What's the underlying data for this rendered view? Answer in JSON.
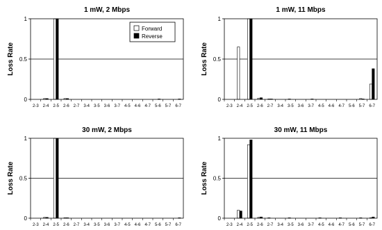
{
  "chart_data": [
    {
      "type": "bar",
      "title": "1 mW, 2 Mbps",
      "ylabel": "Loss Rate",
      "ylim": [
        0,
        1
      ],
      "yticks": [
        "0",
        "0.5",
        "1"
      ],
      "categories": [
        "2-3",
        "2-4",
        "2-5",
        "2-6",
        "2-7",
        "3-4",
        "3-5",
        "3-6",
        "3-7",
        "4-5",
        "4-6",
        "4-7",
        "5-6",
        "5-7",
        "6-7"
      ],
      "legend": "top-right",
      "series": [
        {
          "name": "Forward",
          "color": "#ffffff",
          "values": [
            0,
            0.01,
            1,
            0.01,
            0,
            0,
            0,
            0,
            0,
            0,
            0,
            0,
            0,
            0,
            0
          ]
        },
        {
          "name": "Reverse",
          "color": "#000000",
          "values": [
            0,
            0.01,
            1,
            0.01,
            0,
            0,
            0,
            0,
            0,
            0,
            0,
            0,
            0.005,
            0,
            0.005
          ]
        }
      ]
    },
    {
      "type": "bar",
      "title": "1 mW, 11 Mbps",
      "ylabel": "Loss Rate",
      "ylim": [
        0,
        1
      ],
      "yticks": [
        "0",
        "0.5",
        "1"
      ],
      "categories": [
        "2-3",
        "2-4",
        "2-5",
        "2-6",
        "2-7",
        "3-4",
        "3-5",
        "3-6",
        "3-7",
        "4-5",
        "4-6",
        "4-7",
        "5-6",
        "5-7",
        "6-7"
      ],
      "series": [
        {
          "name": "Forward",
          "color": "#ffffff",
          "values": [
            0,
            0.65,
            1,
            0.015,
            0.005,
            0,
            0.005,
            0,
            0,
            0,
            0,
            0,
            0,
            0.01,
            0.19
          ]
        },
        {
          "name": "Reverse",
          "color": "#000000",
          "values": [
            0,
            0,
            1,
            0.02,
            0.005,
            0,
            0,
            0,
            0.005,
            0,
            0,
            0,
            0,
            0.005,
            0.38
          ]
        }
      ]
    },
    {
      "type": "bar",
      "title": "30 mW, 2 Mbps",
      "ylabel": "Loss Rate",
      "ylim": [
        0,
        1
      ],
      "yticks": [
        "0",
        "0.5",
        "1"
      ],
      "categories": [
        "2-3",
        "2-4",
        "2-5",
        "2-6",
        "2-7",
        "3-4",
        "3-5",
        "3-6",
        "3-7",
        "4-5",
        "4-6",
        "4-7",
        "5-6",
        "5-7",
        "6-7"
      ],
      "series": [
        {
          "name": "Forward",
          "color": "#ffffff",
          "values": [
            0,
            0.01,
            1,
            0.005,
            0,
            0,
            0,
            0,
            0,
            0,
            0,
            0,
            0,
            0,
            0
          ]
        },
        {
          "name": "Reverse",
          "color": "#000000",
          "values": [
            0,
            0.01,
            1,
            0.005,
            0,
            0,
            0,
            0,
            0,
            0,
            0,
            0,
            0,
            0,
            0.005
          ]
        }
      ]
    },
    {
      "type": "bar",
      "title": "30 mW, 11 Mbps",
      "ylabel": "Loss Rate",
      "ylim": [
        0,
        1
      ],
      "yticks": [
        "0",
        "0.5",
        "1"
      ],
      "categories": [
        "2-3",
        "2-4",
        "2-5",
        "2-6",
        "2-7",
        "3-4",
        "3-5",
        "3-6",
        "3-7",
        "4-5",
        "4-6",
        "4-7",
        "5-6",
        "5-7",
        "6-7"
      ],
      "series": [
        {
          "name": "Forward",
          "color": "#ffffff",
          "values": [
            0,
            0.1,
            0.92,
            0.01,
            0.005,
            0,
            0.005,
            0,
            0,
            0.005,
            0,
            0.005,
            0,
            0.005,
            0.005
          ]
        },
        {
          "name": "Reverse",
          "color": "#000000",
          "values": [
            0,
            0.09,
            0.98,
            0.015,
            0,
            0,
            0,
            0,
            0,
            0,
            0,
            0,
            0,
            0,
            0.015
          ]
        }
      ]
    }
  ]
}
